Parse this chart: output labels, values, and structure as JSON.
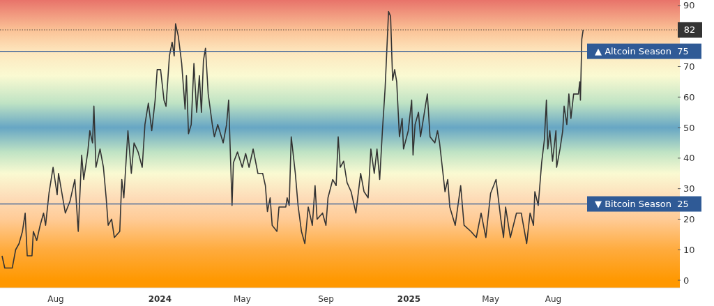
{
  "chart_data": {
    "type": "line",
    "xlim": [
      "2023-05-11",
      "2026-01-31"
    ],
    "ylim": [
      -2.5,
      91.8
    ],
    "xticks": [
      {
        "value": "2023-08-01",
        "label": "Aug"
      },
      {
        "value": "2024-01-01",
        "label": "2024"
      },
      {
        "value": "2024-05-01",
        "label": "May"
      },
      {
        "value": "2024-09-01",
        "label": "Sep"
      },
      {
        "value": "2025-01-01",
        "label": "2025"
      },
      {
        "value": "2025-05-01",
        "label": "May"
      },
      {
        "value": "2025-08-01",
        "label": "Aug"
      }
    ],
    "yticks": [
      0,
      10,
      20,
      30,
      40,
      50,
      60,
      70,
      {
        "value": 80,
        "label": null
      },
      90
    ],
    "grid": false,
    "line_style": "solid",
    "ref_lines": [
      {
        "axis": "y",
        "value": 75,
        "label": "▲ Altcoin Season  75",
        "color": "#2f5a96",
        "line_style": "solid"
      },
      {
        "axis": "y",
        "value": 25,
        "label": "▼ Bitcoin Season  25",
        "color": "#2f5a96",
        "line_style": "solid"
      },
      {
        "axis": "y",
        "value": 82,
        "label": "82",
        "color": "#333333",
        "line_style": "dotted"
      }
    ],
    "series": [
      {
        "color": "#333333",
        "x": [
          "2023-05-14",
          "2023-05-18",
          "2023-05-29",
          "2023-06-03",
          "2023-06-08",
          "2023-06-13",
          "2023-06-17",
          "2023-06-20",
          "2023-06-27",
          "2023-06-29",
          "2023-07-04",
          "2023-07-09",
          "2023-07-14",
          "2023-07-17",
          "2023-07-22",
          "2023-07-28",
          "2023-08-03",
          "2023-08-05",
          "2023-08-15",
          "2023-08-22",
          "2023-08-29",
          "2023-09-03",
          "2023-09-08",
          "2023-09-11",
          "2023-09-17",
          "2023-09-20",
          "2023-09-24",
          "2023-09-26",
          "2023-09-29",
          "2023-10-05",
          "2023-10-10",
          "2023-10-14",
          "2023-10-17",
          "2023-10-22",
          "2023-10-26",
          "2023-11-03",
          "2023-11-06",
          "2023-11-09",
          "2023-11-15",
          "2023-11-20",
          "2023-11-24",
          "2023-11-30",
          "2023-12-06",
          "2023-12-10",
          "2023-12-15",
          "2023-12-20",
          "2023-12-25",
          "2023-12-28",
          "2024-01-02",
          "2024-01-07",
          "2024-01-10",
          "2024-01-15",
          "2024-01-19",
          "2024-01-22",
          "2024-01-24",
          "2024-01-28",
          "2024-02-02",
          "2024-02-07",
          "2024-02-09",
          "2024-02-12",
          "2024-02-16",
          "2024-02-20",
          "2024-02-24",
          "2024-02-28",
          "2024-03-02",
          "2024-03-05",
          "2024-03-08",
          "2024-03-12",
          "2024-03-18",
          "2024-03-21",
          "2024-03-26",
          "2024-04-03",
          "2024-04-08",
          "2024-04-11",
          "2024-04-16",
          "2024-04-18",
          "2024-04-24",
          "2024-05-01",
          "2024-05-06",
          "2024-05-11",
          "2024-05-17",
          "2024-05-24",
          "2024-05-31",
          "2024-06-04",
          "2024-06-07",
          "2024-06-11",
          "2024-06-14",
          "2024-06-21",
          "2024-06-24",
          "2024-07-04",
          "2024-07-06",
          "2024-07-09",
          "2024-07-12",
          "2024-07-18",
          "2024-07-22",
          "2024-07-27",
          "2024-08-01",
          "2024-08-06",
          "2024-08-12",
          "2024-08-16",
          "2024-08-19",
          "2024-08-27",
          "2024-09-01",
          "2024-09-04",
          "2024-09-11",
          "2024-09-16",
          "2024-09-19",
          "2024-09-22",
          "2024-09-27",
          "2024-10-02",
          "2024-10-08",
          "2024-10-15",
          "2024-10-22",
          "2024-10-27",
          "2024-11-02",
          "2024-11-06",
          "2024-11-11",
          "2024-11-15",
          "2024-11-19",
          "2024-11-23",
          "2024-11-27",
          "2024-12-02",
          "2024-12-05",
          "2024-12-08",
          "2024-12-11",
          "2024-12-14",
          "2024-12-18",
          "2024-12-22",
          "2024-12-24",
          "2024-12-31",
          "2025-01-05",
          "2025-01-07",
          "2025-01-10",
          "2025-01-15",
          "2025-01-18",
          "2025-01-23",
          "2025-01-28",
          "2025-02-01",
          "2025-02-08",
          "2025-02-12",
          "2025-02-15",
          "2025-02-20",
          "2025-02-23",
          "2025-02-27",
          "2025-03-02",
          "2025-03-10",
          "2025-03-18",
          "2025-03-23",
          "2025-04-02",
          "2025-04-10",
          "2025-04-17",
          "2025-04-24",
          "2025-05-01",
          "2025-05-09",
          "2025-05-16",
          "2025-05-20",
          "2025-05-23",
          "2025-05-30",
          "2025-06-08",
          "2025-06-15",
          "2025-06-23",
          "2025-06-28",
          "2025-07-03",
          "2025-07-05",
          "2025-07-10",
          "2025-07-15",
          "2025-07-19",
          "2025-07-22",
          "2025-07-24",
          "2025-07-27",
          "2025-07-31",
          "2025-08-05",
          "2025-08-06",
          "2025-08-11",
          "2025-08-15",
          "2025-08-17",
          "2025-08-21",
          "2025-08-24",
          "2025-08-27",
          "2025-08-31",
          "2025-09-07",
          "2025-09-09",
          "2025-09-10",
          "2025-09-12",
          "2025-09-14"
        ],
        "values": [
          8,
          4,
          4,
          10,
          12,
          16,
          22,
          8,
          8,
          16,
          13,
          18,
          22,
          18,
          28.5,
          37,
          28,
          35,
          22,
          26,
          33,
          16,
          41,
          33,
          42,
          49,
          45,
          57,
          37,
          43,
          37,
          27,
          18,
          20,
          14,
          16,
          33,
          27,
          49,
          35,
          45,
          42,
          37,
          51,
          58,
          49,
          59,
          69,
          69,
          59,
          57,
          73.5,
          78,
          73.5,
          84,
          80,
          71,
          56,
          67,
          48,
          51,
          71,
          55,
          67,
          55,
          72,
          76,
          61,
          51,
          47,
          51,
          45,
          51,
          59,
          24.5,
          38.5,
          42,
          37,
          41.5,
          37,
          43,
          35,
          35,
          31,
          22.5,
          27,
          18,
          16,
          24,
          24,
          27,
          24.5,
          47,
          35,
          24.5,
          16,
          12,
          24,
          18,
          31,
          20,
          22,
          18,
          27,
          33,
          31,
          47,
          37,
          39,
          32,
          29,
          22,
          35,
          29,
          27,
          43,
          35,
          43,
          33,
          49,
          63,
          88,
          86.5,
          65.5,
          69,
          65,
          47,
          53,
          43,
          49,
          59,
          41,
          51,
          55,
          47,
          54,
          61,
          47,
          45,
          49,
          45,
          35,
          29,
          33,
          24,
          18,
          31,
          18,
          16,
          14,
          22,
          14,
          28.5,
          33,
          20,
          14,
          24,
          14,
          22,
          22,
          12,
          22,
          18,
          29,
          24.5,
          38.5,
          46,
          59,
          43,
          49,
          39,
          49,
          37,
          43,
          49,
          57,
          51,
          61,
          53,
          61,
          61,
          65,
          59,
          79,
          82
        ]
      }
    ]
  }
}
